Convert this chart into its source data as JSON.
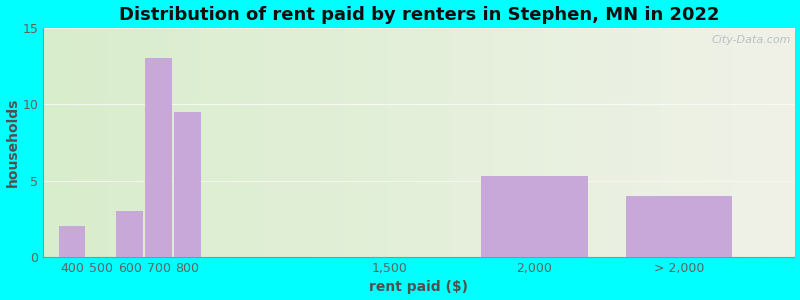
{
  "title": "Distribution of rent paid by renters in Stephen, MN in 2022",
  "xlabel": "rent paid ($)",
  "ylabel": "households",
  "bar_centers": [
    400,
    500,
    600,
    700,
    800,
    1500,
    2000,
    2500
  ],
  "bar_widths": [
    100,
    100,
    100,
    100,
    100,
    100,
    400,
    400
  ],
  "bar_values": [
    2,
    0,
    3,
    13,
    9.5,
    0,
    5.3,
    4
  ],
  "tick_positions": [
    400,
    500,
    600,
    700,
    800,
    1500,
    2000,
    2500
  ],
  "tick_labels": [
    "400",
    "500",
    "600",
    "700",
    "800",
    "1,500",
    "2,000",
    "> 2,000"
  ],
  "bar_color": "#c8a8d8",
  "xlim": [
    300,
    2900
  ],
  "ylim": [
    0,
    15
  ],
  "yticks": [
    0,
    5,
    10,
    15
  ],
  "bg_left_color": "#d8edcc",
  "bg_right_color": "#f0f2e8",
  "outer_bg": "#00ffff",
  "title_fontsize": 13,
  "axis_label_fontsize": 10,
  "tick_fontsize": 9,
  "watermark": "City-Data.com"
}
